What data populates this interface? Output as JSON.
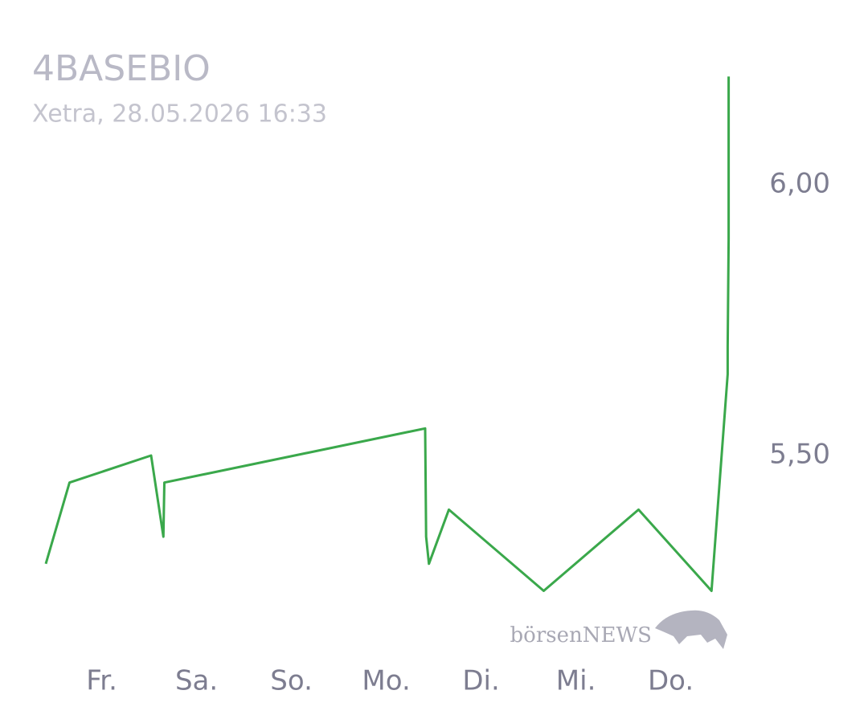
{
  "chart_data": {
    "type": "line",
    "title": "4BASEBIO",
    "subtitle": "Xetra, 28.05.2026 16:33",
    "watermark": "börsenNEWS",
    "x": [
      -0.59,
      -0.34,
      0.52,
      0.65,
      0.66,
      3.41,
      3.42,
      3.45,
      3.66,
      4.66,
      5.66,
      6.43,
      6.6,
      6.6,
      6.61,
      6.61,
      6.61
    ],
    "series": [
      {
        "name": "4BASEBIO",
        "color": "#3aa84b",
        "values": [
          5.3,
          5.45,
          5.5,
          5.35,
          5.45,
          5.55,
          5.35,
          5.3,
          5.4,
          5.25,
          5.4,
          5.25,
          5.65,
          5.7,
          5.9,
          6.1,
          6.2
        ]
      }
    ],
    "xlim": [
      -0.7,
      6.8
    ],
    "xticks": [
      {
        "value": 0,
        "label": "Fr."
      },
      {
        "value": 1,
        "label": "Sa."
      },
      {
        "value": 2,
        "label": "So."
      },
      {
        "value": 3,
        "label": "Mo."
      },
      {
        "value": 4,
        "label": "Di."
      },
      {
        "value": 5,
        "label": "Mi."
      },
      {
        "value": 6,
        "label": "Do."
      }
    ],
    "ylim": [
      5.18,
      6.25
    ],
    "yticks": [
      {
        "value": 5.5,
        "label": "5,50"
      },
      {
        "value": 6,
        "label": "6,00"
      }
    ],
    "grid": false
  }
}
